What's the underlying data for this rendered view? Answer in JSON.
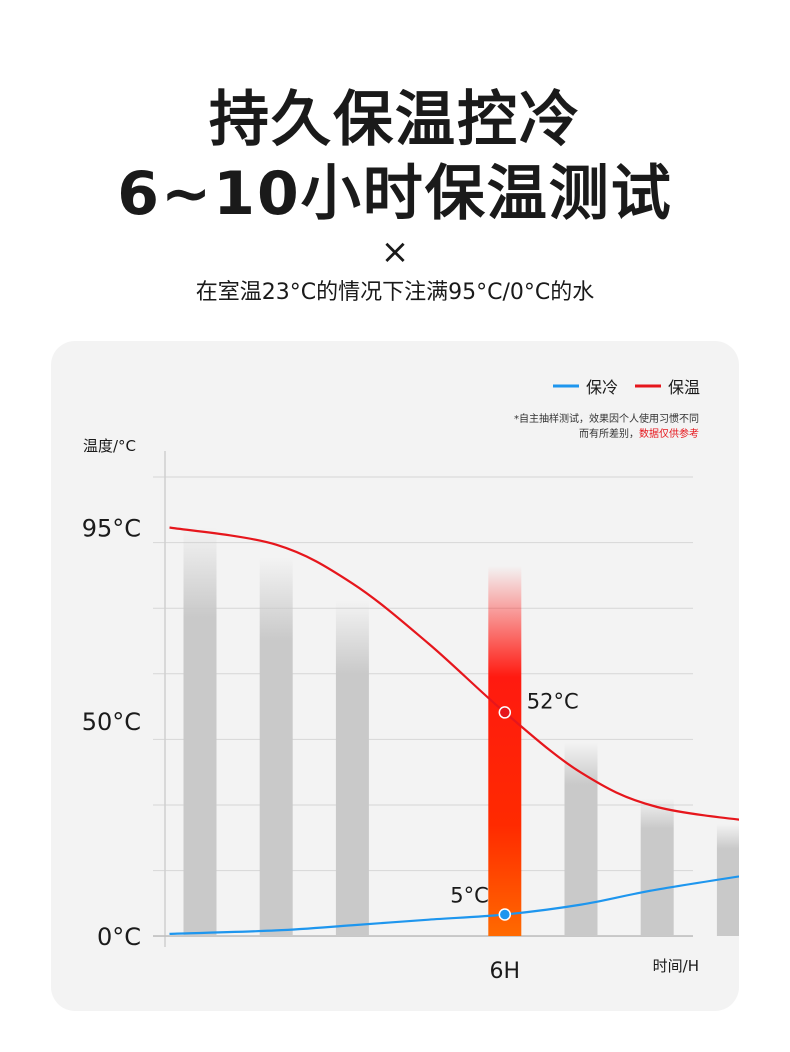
{
  "header": {
    "title_line1": "持久保温控冷",
    "title_line2": "6~10小时保温测试",
    "times_symbol": "×",
    "subtitle": "在室温23°C的情况下注满95°C/0°C的水"
  },
  "chart_data": {
    "type": "line",
    "x_label": "时间/H",
    "y_label": "温度/°C",
    "y_ticks": [
      "0°C",
      "50°C",
      "95°C"
    ],
    "y_tick_values": [
      0,
      50,
      95
    ],
    "x_highlight_label": "6H",
    "x_highlight_value": 6,
    "legend": {
      "placement": "top-right",
      "items": [
        {
          "name": "保冷",
          "color": "#1e96ee"
        },
        {
          "name": "保温",
          "color": "#e6161c"
        }
      ]
    },
    "note": {
      "line1": "*自主抽样测试，效果因个人使用习惯不同",
      "line2_prefix": "而有所差别，",
      "line2_highlight": "数据仅供参考",
      "highlight_color": "#e6161c"
    },
    "annotations": [
      {
        "series": "保温",
        "x": 6,
        "y": 52,
        "label": "52°C"
      },
      {
        "series": "保冷",
        "x": 6,
        "y": 5,
        "label": "5°C"
      }
    ],
    "bars": {
      "x": [
        2,
        3,
        4,
        6,
        7,
        8,
        9
      ],
      "heights": [
        95,
        88,
        78,
        86,
        45,
        32,
        26
      ],
      "highlight_x": 6
    },
    "series": [
      {
        "name": "保温",
        "color": "#e6161c",
        "x": [
          1.6,
          3,
          4,
          5,
          6,
          7,
          8,
          9.6
        ],
        "y": [
          95,
          91,
          82,
          68,
          52,
          38,
          30,
          26
        ]
      },
      {
        "name": "保冷",
        "color": "#1e96ee",
        "x": [
          1.6,
          3,
          4,
          5,
          6,
          7,
          8,
          9.6
        ],
        "y": [
          0.5,
          1.3,
          2.5,
          3.8,
          5,
          7.3,
          10.8,
          15.3
        ]
      }
    ]
  }
}
